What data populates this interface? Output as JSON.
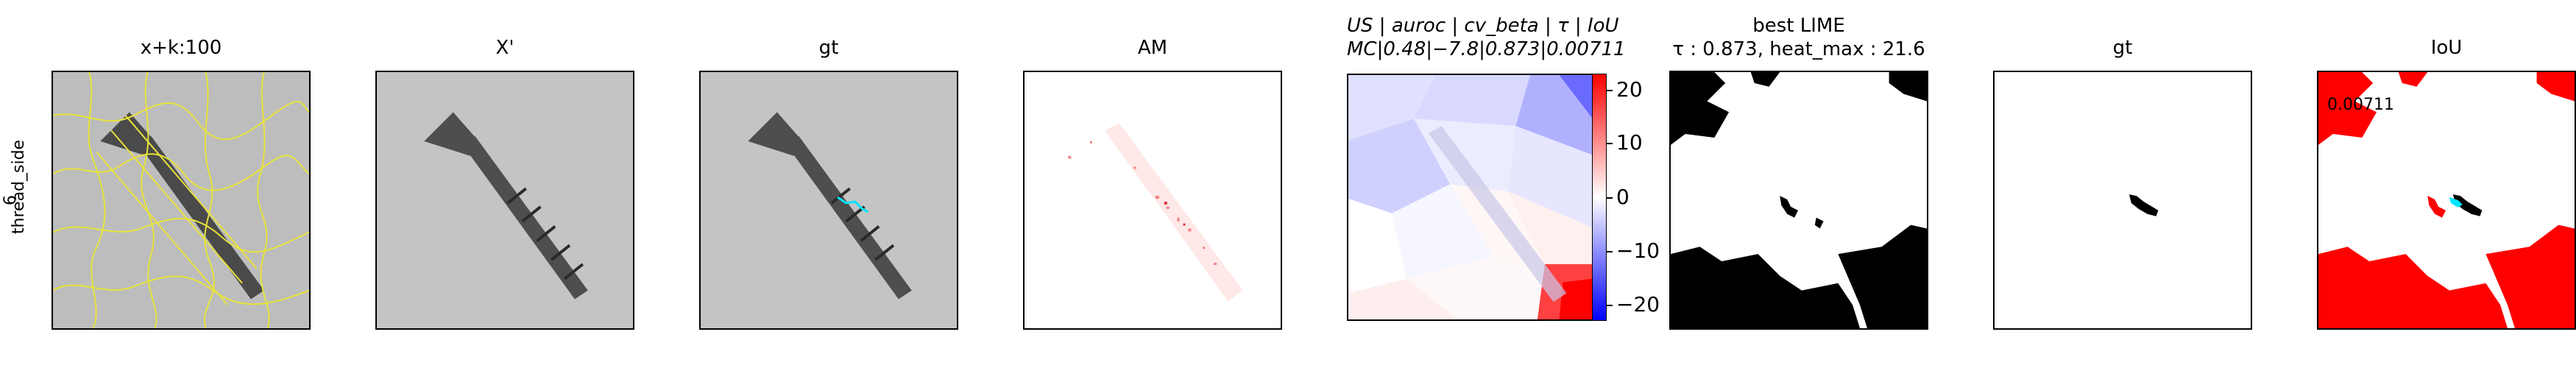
{
  "row_label": {
    "line1": "thread_side",
    "line2": "6"
  },
  "panels": [
    {
      "title": "x+k:100"
    },
    {
      "title": "X'"
    },
    {
      "title": "gt"
    },
    {
      "title": "AM"
    },
    {
      "title_line1": "US | auroc | cv_beta | τ | IoU",
      "title_line2": "MC|0.48|−7.8|0.873|0.00711"
    },
    {
      "title_line1": "best LIME",
      "title_line2": "τ : 0.873, heat_max : 21.6"
    },
    {
      "title": "gt"
    },
    {
      "title": "IoU"
    }
  ],
  "colorbar": {
    "ticks": [
      "20",
      "10",
      "0",
      "−10",
      "−20"
    ],
    "range": [
      -22,
      22
    ],
    "colors": {
      "high": "#ff0000",
      "mid": "#ffffff",
      "low": "#0000ff"
    }
  },
  "iou_annotation": "0.00711",
  "colors": {
    "superpixel_outline": "#e8e33a",
    "gt_overlay": "#00e5ff",
    "mask_red": "#ff0000",
    "mask_black": "#000000"
  }
}
